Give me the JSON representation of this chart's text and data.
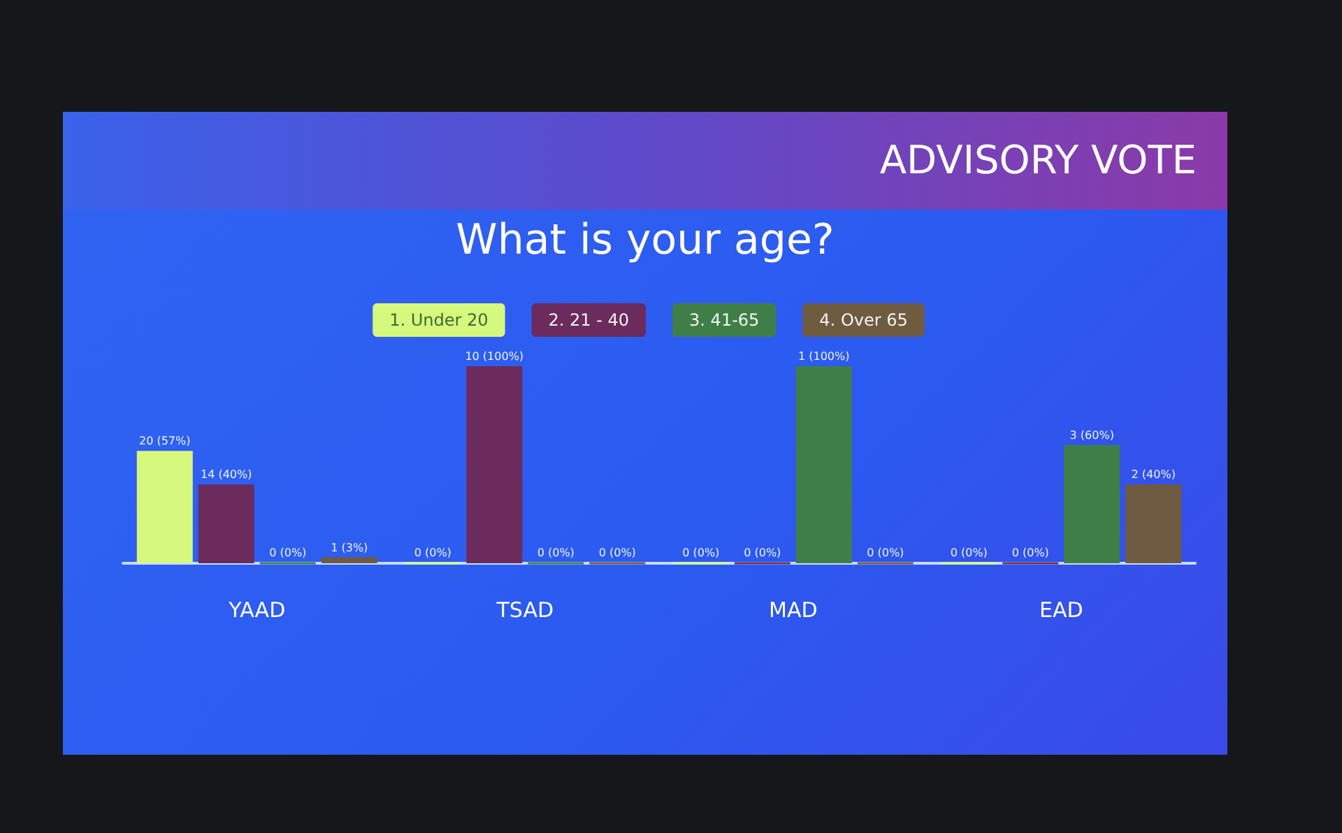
{
  "chart_data": {
    "type": "bar",
    "title": "What is your age?",
    "annotations": [
      "ADVISORY VOTE"
    ],
    "categories": [
      "YAAD",
      "TSAD",
      "MAD",
      "EAD"
    ],
    "series": [
      {
        "name": "1. Under 20",
        "color": "#d6f87c",
        "values": [
          57,
          0,
          0,
          0
        ],
        "value_labels": [
          "20 (57%)",
          "0 (0%)",
          "0 (0%)",
          "0 (0%)"
        ]
      },
      {
        "name": "2. 21 - 40",
        "color": "#6b2b5c",
        "values": [
          40,
          100,
          0,
          0
        ],
        "value_labels": [
          "14 (40%)",
          "10 (100%)",
          "0 (0%)",
          "0 (0%)"
        ]
      },
      {
        "name": "3. 41-65",
        "color": "#3f7f47",
        "values": [
          0,
          0,
          100,
          60
        ],
        "value_labels": [
          "0 (0%)",
          "0 (0%)",
          "1 (100%)",
          "3 (60%)"
        ]
      },
      {
        "name": "4. Over 65",
        "color": "#6f5b40",
        "values": [
          3,
          0,
          0,
          40
        ],
        "value_labels": [
          "1 (3%)",
          "0 (0%)",
          "0 (0%)",
          "2 (40%)"
        ]
      }
    ],
    "legend": "top"
  }
}
